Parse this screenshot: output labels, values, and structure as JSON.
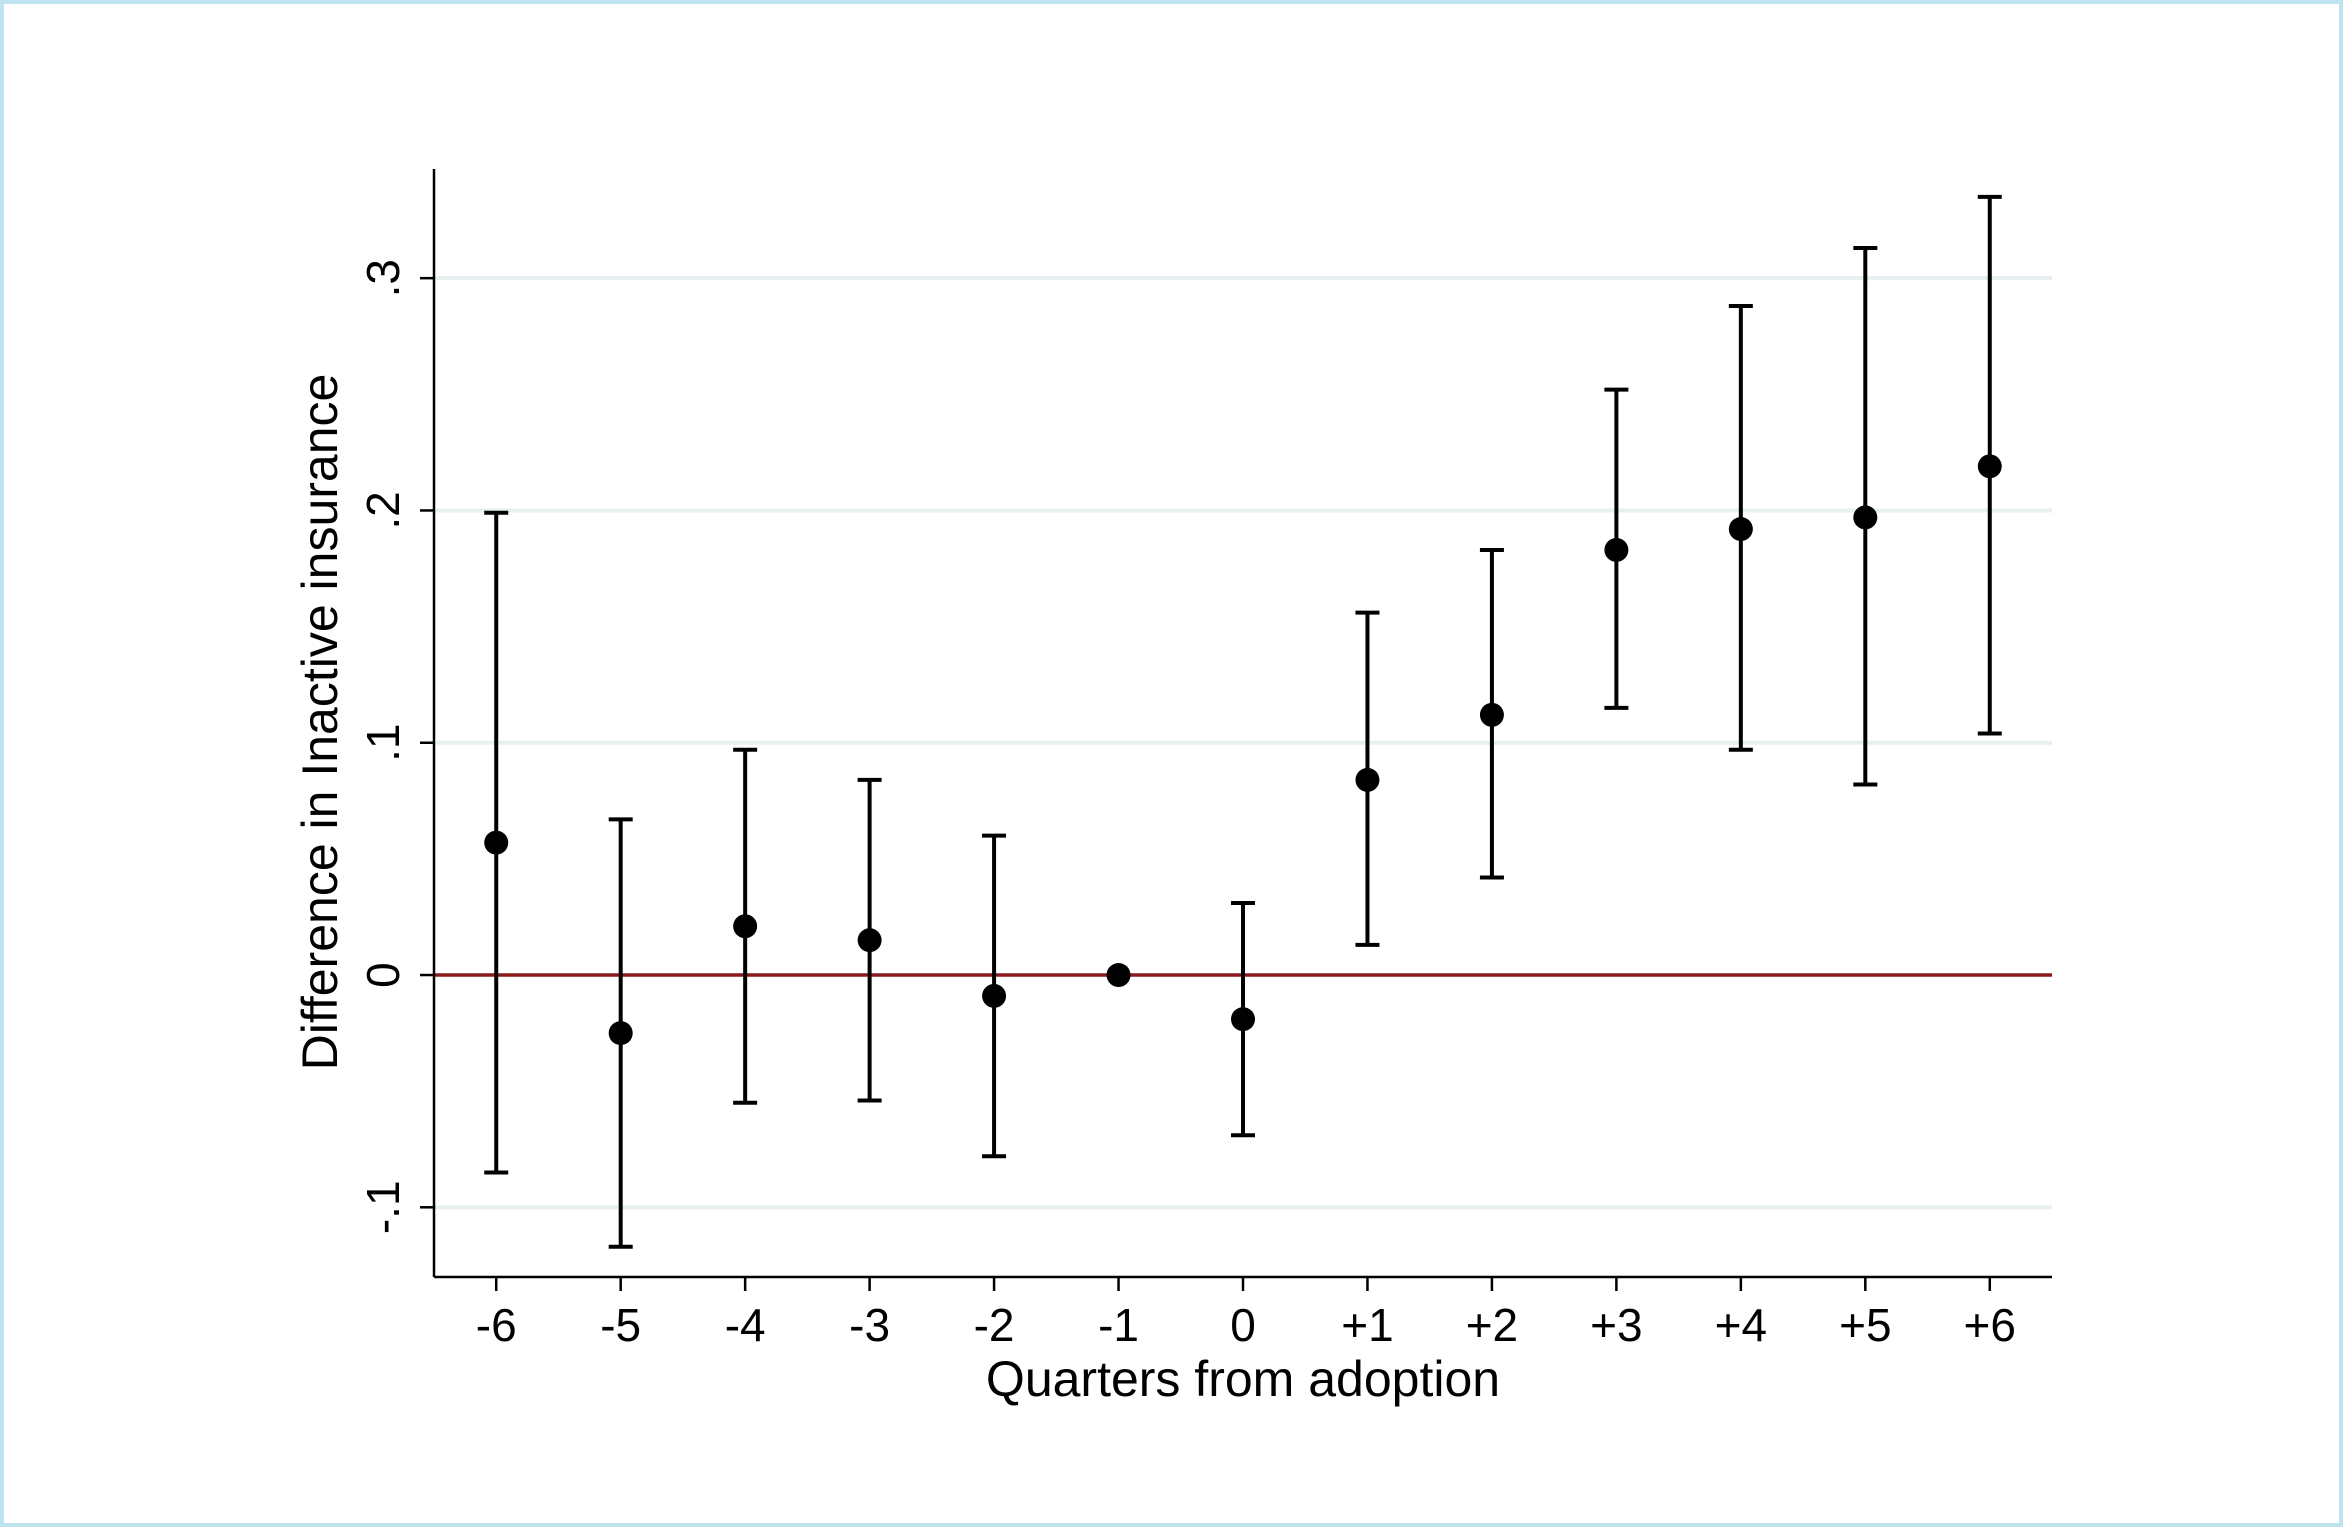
{
  "chart_data": {
    "type": "scatter",
    "title": "",
    "xlabel": "Quarters from adoption",
    "ylabel": "Difference in Inactive insurance",
    "x_tick_labels": [
      "-6",
      "-5",
      "-4",
      "-3",
      "-2",
      "-1",
      "0",
      "+1",
      "+2",
      "+3",
      "+4",
      "+5",
      "+6"
    ],
    "x": [
      -6,
      -5,
      -4,
      -3,
      -2,
      -1,
      0,
      1,
      2,
      3,
      4,
      5,
      6
    ],
    "y_ticks": [
      -0.1,
      0,
      0.1,
      0.2,
      0.3
    ],
    "y_tick_labels": [
      "-.1",
      "0",
      ".1",
      ".2",
      ".3"
    ],
    "ylim": [
      -0.13,
      0.347
    ],
    "xlim": [
      -6.5,
      6.5
    ],
    "grid": true,
    "reference_line": {
      "y": 0,
      "color": "#8b1a1f"
    },
    "series": [
      {
        "point_estimate": [
          0.057,
          -0.025,
          0.021,
          0.015,
          -0.009,
          0.0,
          -0.019,
          0.084,
          0.112,
          0.183,
          0.192,
          0.197,
          0.219
        ],
        "ci_lower": [
          -0.085,
          -0.117,
          -0.055,
          -0.054,
          -0.078,
          null,
          -0.069,
          0.013,
          0.042,
          0.115,
          0.097,
          0.082,
          0.104
        ],
        "ci_upper": [
          0.199,
          0.067,
          0.097,
          0.084,
          0.06,
          null,
          0.031,
          0.156,
          0.183,
          0.252,
          0.288,
          0.313,
          0.335
        ]
      }
    ],
    "colors": {
      "points": "#000000",
      "gridlines": "#e8eff0",
      "axis": "#000000"
    }
  }
}
